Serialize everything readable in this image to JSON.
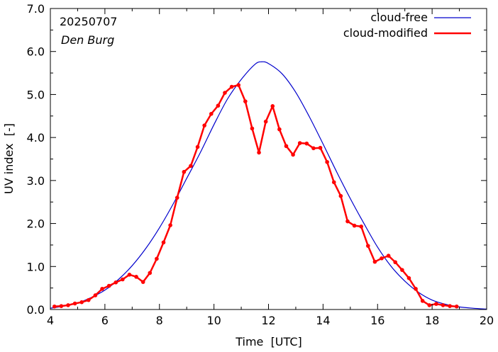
{
  "chart_data": {
    "type": "line",
    "annotations": {
      "date": "20250707",
      "station": "Den Burg"
    },
    "xlabel": "Time  [UTC]",
    "ylabel": "UV index  [-]",
    "xlim": [
      4,
      20
    ],
    "ylim": [
      0,
      7
    ],
    "x_ticks": [
      4,
      6,
      8,
      10,
      12,
      14,
      16,
      18,
      20
    ],
    "x_tick_labels": [
      "4",
      "6",
      "8",
      "10",
      "12",
      "14",
      "16",
      "18",
      "20"
    ],
    "y_ticks": [
      0,
      1,
      2,
      3,
      4,
      5,
      6,
      7
    ],
    "y_tick_labels": [
      "0.0",
      "1.0",
      "2.0",
      "3.0",
      "4.0",
      "5.0",
      "6.0",
      "7.0"
    ],
    "grid": false,
    "legend_position": "top-right",
    "series": [
      {
        "name": "cloud-free",
        "color": "#0000cc",
        "markers": false,
        "x": [
          4.0,
          4.5,
          5.0,
          5.5,
          6.0,
          6.5,
          7.0,
          7.5,
          8.0,
          8.5,
          9.0,
          9.5,
          10.0,
          10.5,
          11.0,
          11.5,
          11.75,
          12.0,
          12.5,
          13.0,
          13.5,
          14.0,
          14.5,
          15.0,
          15.5,
          16.0,
          16.5,
          17.0,
          17.5,
          18.0,
          18.5,
          19.0,
          19.5,
          20.0
        ],
        "y": [
          0.03,
          0.08,
          0.15,
          0.28,
          0.45,
          0.7,
          1.02,
          1.42,
          1.9,
          2.45,
          3.05,
          3.65,
          4.3,
          4.9,
          5.35,
          5.7,
          5.76,
          5.72,
          5.48,
          5.05,
          4.48,
          3.85,
          3.2,
          2.58,
          2.0,
          1.45,
          1.0,
          0.66,
          0.4,
          0.22,
          0.12,
          0.06,
          0.03,
          0.01
        ]
      },
      {
        "name": "cloud-modified",
        "color": "#ff0000",
        "markers": true,
        "x": [
          4.15,
          4.4,
          4.65,
          4.9,
          5.15,
          5.4,
          5.65,
          5.9,
          6.15,
          6.4,
          6.65,
          6.9,
          7.15,
          7.4,
          7.65,
          7.9,
          8.15,
          8.4,
          8.65,
          8.9,
          9.15,
          9.4,
          9.65,
          9.9,
          10.15,
          10.4,
          10.65,
          10.9,
          11.15,
          11.4,
          11.65,
          11.9,
          12.15,
          12.4,
          12.65,
          12.9,
          13.15,
          13.4,
          13.65,
          13.9,
          14.15,
          14.4,
          14.65,
          14.9,
          15.15,
          15.4,
          15.65,
          15.9,
          16.15,
          16.4,
          16.65,
          16.9,
          17.15,
          17.4,
          17.65,
          17.9,
          18.15,
          18.4,
          18.65,
          18.9
        ],
        "y": [
          0.07,
          0.08,
          0.1,
          0.14,
          0.17,
          0.22,
          0.33,
          0.48,
          0.55,
          0.63,
          0.7,
          0.81,
          0.76,
          0.64,
          0.85,
          1.18,
          1.56,
          1.96,
          2.6,
          3.2,
          3.34,
          3.78,
          4.28,
          4.55,
          4.74,
          5.04,
          5.18,
          5.22,
          4.84,
          4.21,
          3.65,
          4.37,
          4.73,
          4.19,
          3.8,
          3.6,
          3.87,
          3.86,
          3.75,
          3.76,
          3.43,
          2.96,
          2.64,
          2.05,
          1.95,
          1.93,
          1.48,
          1.11,
          1.19,
          1.25,
          1.1,
          0.92,
          0.73,
          0.48,
          0.2,
          0.1,
          0.13,
          0.1,
          0.08,
          0.07
        ]
      }
    ]
  }
}
